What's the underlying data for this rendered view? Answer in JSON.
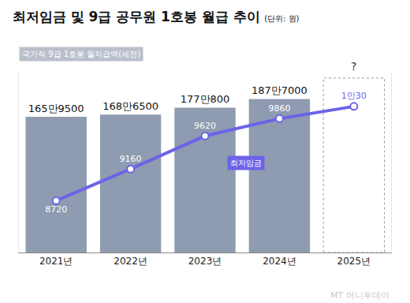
{
  "chart_data": {
    "type": "bar",
    "title": "최저임금 및 9급 공무원 1호봉 월급 추이",
    "subtitle": "(단위: 원)",
    "categories": [
      "2021년",
      "2022년",
      "2023년",
      "2024년",
      "2025년"
    ],
    "series": [
      {
        "name": "국가직 9급 1호봉 월지급액(세전)",
        "type": "bar",
        "color": "#8e9bb0",
        "values": [
          1659500,
          1686500,
          1770800,
          1877000,
          null
        ],
        "value_labels": [
          "165만9500",
          "168만6500",
          "177만800",
          "187만7000",
          null
        ]
      },
      {
        "name": "최저임금",
        "type": "line",
        "axis": "y2",
        "color": "#6c63e8",
        "marker": "circle",
        "line_style": "solid",
        "values": [
          8720,
          9160,
          9620,
          9860,
          10030
        ],
        "value_labels": [
          "8720",
          "9160",
          "9620",
          "9860",
          "1만30"
        ]
      }
    ],
    "ylim": [
      0,
      2200000
    ],
    "yticks": [],
    "y2lim": [
      8000,
      10500
    ],
    "y2ticks": [],
    "tick_labels": "x",
    "data_labels": true,
    "grid": false,
    "annotations": [
      {
        "text": "?",
        "x": "2025년"
      },
      {
        "text": "MT 머니투데이"
      }
    ]
  }
}
